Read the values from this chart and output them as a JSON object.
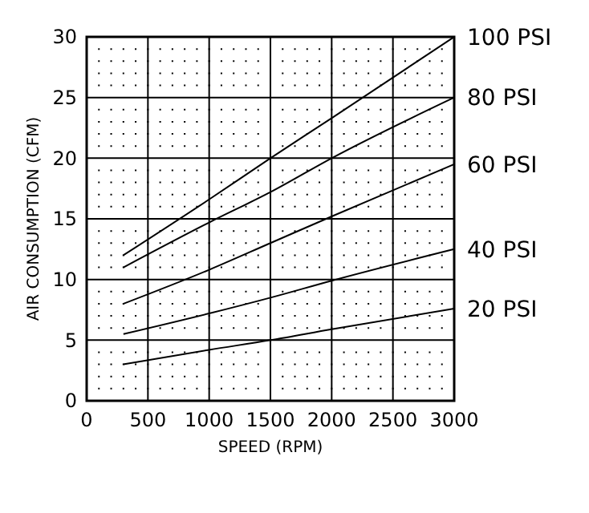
{
  "chart_data": {
    "type": "line",
    "xlabel": "SPEED (RPM)",
    "ylabel": "AIR CONSUMPTION (CFM)",
    "xlim": [
      0,
      3000
    ],
    "ylim": [
      0,
      30
    ],
    "xticks": [
      0,
      500,
      1000,
      1500,
      2000,
      2500,
      3000
    ],
    "yticks": [
      0,
      5,
      10,
      15,
      20,
      25,
      30
    ],
    "grid": true,
    "legend": "right",
    "marker": "none",
    "line_style": "solid",
    "series": [
      {
        "name": "100 PSI",
        "color": "#000000",
        "x": [
          300,
          1000,
          1500,
          2000,
          3000
        ],
        "values": [
          12,
          16.6,
          20,
          23.3,
          30
        ]
      },
      {
        "name": "80 PSI",
        "color": "#000000",
        "x": [
          300,
          1000,
          1500,
          2000,
          3000
        ],
        "values": [
          11,
          14.7,
          17.2,
          20,
          25
        ]
      },
      {
        "name": "60 PSI",
        "color": "#000000",
        "x": [
          300,
          1000,
          1500,
          2000,
          3000
        ],
        "values": [
          8,
          10.8,
          13,
          15.2,
          19.5
        ]
      },
      {
        "name": "40 PSI",
        "color": "#000000",
        "x": [
          300,
          1000,
          1500,
          2000,
          3000
        ],
        "values": [
          5.5,
          7.2,
          8.5,
          9.9,
          12.5
        ]
      },
      {
        "name": "20 PSI",
        "color": "#000000",
        "x": [
          300,
          1000,
          1500,
          2000,
          3000
        ],
        "values": [
          3,
          4.2,
          5,
          5.9,
          7.6
        ]
      }
    ]
  }
}
